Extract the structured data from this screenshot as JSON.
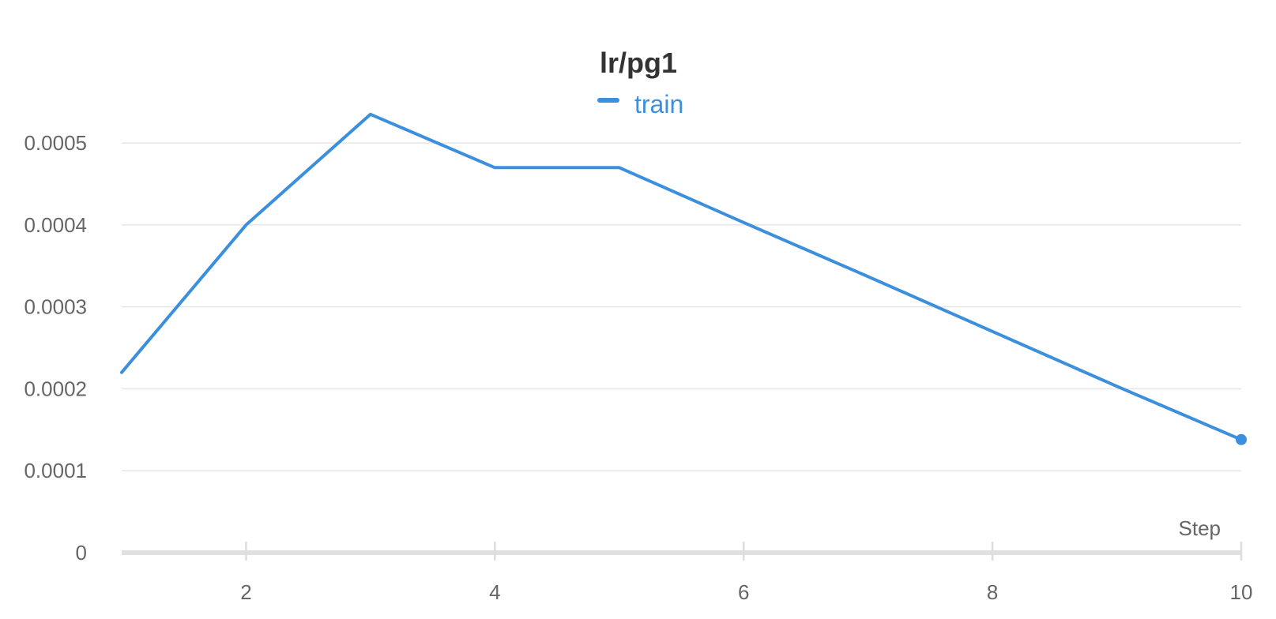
{
  "chart_data": {
    "type": "line",
    "title": "lr/pg1",
    "xlabel": "Step",
    "ylabel": "",
    "x_ticks": [
      2,
      4,
      6,
      8,
      10
    ],
    "y_ticks": [
      0,
      0.0001,
      0.0002,
      0.0003,
      0.0004,
      0.0005
    ],
    "y_tick_labels": [
      "0",
      "0.0001",
      "0.0002",
      "0.0003",
      "0.0004",
      "0.0005"
    ],
    "xlim": [
      1,
      10
    ],
    "ylim": [
      0,
      0.00053
    ],
    "grid": true,
    "legend_position": "top-center",
    "series": [
      {
        "name": "train",
        "color": "#3b8fdc",
        "x": [
          1,
          2,
          3,
          4,
          5,
          6,
          7,
          8,
          9,
          10
        ],
        "y": [
          0.00022,
          0.0004,
          0.000535,
          0.00047,
          0.00047,
          0.000403,
          0.000337,
          0.00027,
          0.000203,
          0.000138
        ],
        "last_point_marker": true
      }
    ]
  }
}
